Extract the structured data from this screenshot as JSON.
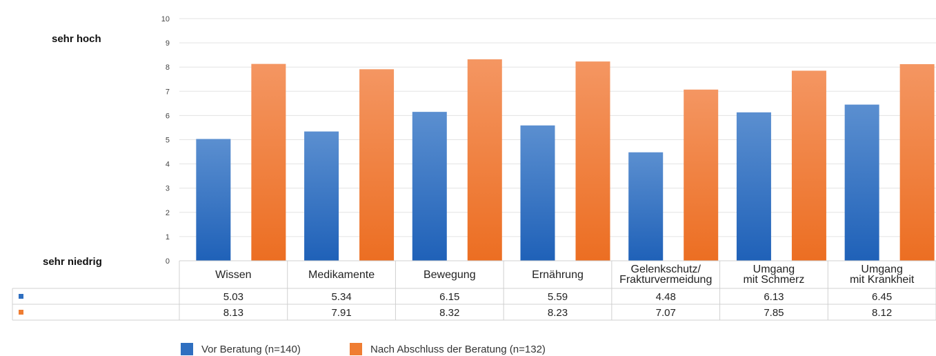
{
  "labels": {
    "high": "sehr hoch",
    "low": "sehr niedrig"
  },
  "colors": {
    "before": "#2f6fc0",
    "after": "#ef7d32",
    "grid": "#e3e3e3",
    "border": "#d0d0d0"
  },
  "chart_data": {
    "type": "bar",
    "categories": [
      [
        "Wissen"
      ],
      [
        "Medikamente"
      ],
      [
        "Bewegung"
      ],
      [
        "Ernährung"
      ],
      [
        "Gelenkschutz/",
        "Frakturvermeidung"
      ],
      [
        "Umgang",
        "mit Schmerz"
      ],
      [
        "Umgang",
        "mit Krankheit"
      ]
    ],
    "series": [
      {
        "name": "Vor Beratung (n=140)",
        "values": [
          5.03,
          5.34,
          6.15,
          5.59,
          4.48,
          6.13,
          6.45
        ],
        "display": [
          "5.03",
          "5.34",
          "6.15",
          "5.59",
          "4.48",
          "6.13",
          "6.45"
        ]
      },
      {
        "name": "Nach Abschluss der Beratung (n=132)",
        "values": [
          8.13,
          7.91,
          8.32,
          8.23,
          7.07,
          7.85,
          8.12
        ],
        "display": [
          "8.13",
          "7.91",
          "8.32",
          "8.23",
          "7.07",
          "7.85",
          "8.12"
        ]
      }
    ],
    "ylim": [
      0,
      10
    ],
    "yticks": [
      "0",
      "1",
      "2",
      "3",
      "4",
      "5",
      "6",
      "7",
      "8",
      "9",
      "10"
    ],
    "grid": true,
    "legend": "bottom"
  }
}
